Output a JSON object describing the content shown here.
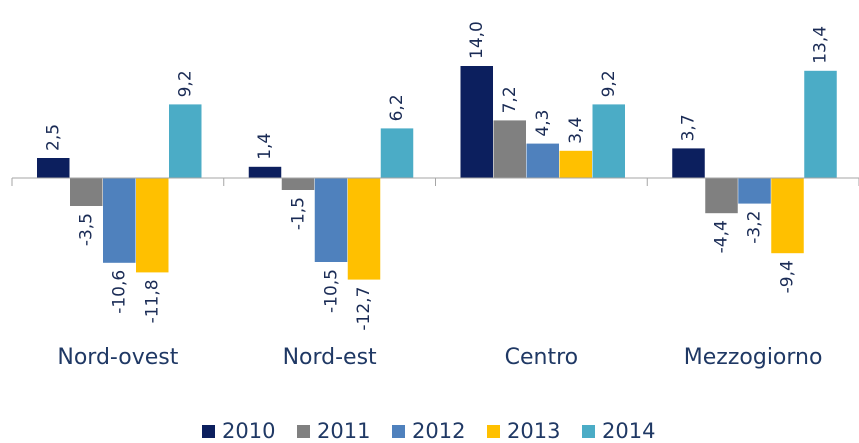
{
  "chart_data": {
    "type": "bar",
    "categories": [
      "Nord-ovest",
      "Nord-est",
      "Centro",
      "Mezzogiorno"
    ],
    "series": [
      {
        "name": "2010",
        "color": "#0c1f5e",
        "values": [
          2.5,
          1.4,
          14.0,
          3.7
        ],
        "value_labels": [
          "2,5",
          "1,4",
          "14,0",
          "3,7"
        ]
      },
      {
        "name": "2011",
        "color": "#808080",
        "values": [
          -3.5,
          -1.5,
          7.2,
          -4.4
        ],
        "value_labels": [
          "-3,5",
          "-1,5",
          "7,2",
          "-4,4"
        ]
      },
      {
        "name": "2012",
        "color": "#4f81bd",
        "values": [
          -10.6,
          -10.5,
          4.3,
          -3.2
        ],
        "value_labels": [
          "-10,6",
          "-10,5",
          "4,3",
          "-3,2"
        ]
      },
      {
        "name": "2013",
        "color": "#ffc000",
        "values": [
          -11.8,
          -12.7,
          3.4,
          -9.4
        ],
        "value_labels": [
          "-11,8",
          "-12,7",
          "3,4",
          "-9,4"
        ]
      },
      {
        "name": "2014",
        "color": "#4bacc6",
        "values": [
          9.2,
          6.2,
          9.2,
          13.4
        ],
        "value_labels": [
          "9,2",
          "6,2",
          "9,2",
          "13,4"
        ]
      }
    ],
    "ylim": [
      -20,
      20
    ],
    "legend": "bottom"
  }
}
